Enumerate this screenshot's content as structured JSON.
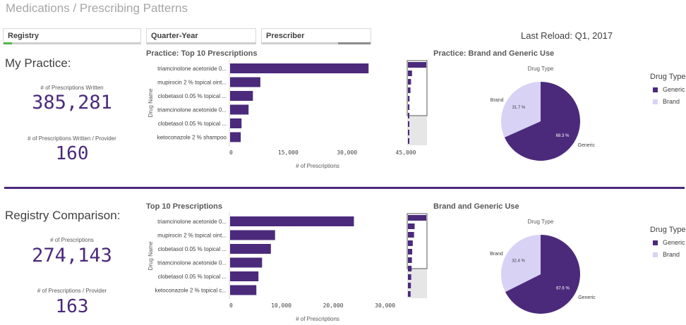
{
  "header": {
    "title": "Medications / Prescribing Patterns"
  },
  "filters": [
    {
      "label": "Registry",
      "fill": 0.06,
      "fill_color": "#52b748"
    },
    {
      "label": "Quarter-Year",
      "fill": 0,
      "fill_color": "#cfcfcf"
    },
    {
      "label": "Prescriber",
      "fill": 0.3,
      "fill_color": "#8c8c8c"
    }
  ],
  "last_reload": "Last Reload: Q1, 2017",
  "colors": {
    "purple": "#4b2a7b",
    "light_purple": "#d8d2f5"
  },
  "practice": {
    "section_title": "My Practice:",
    "kpi1_label": "# of Prescriptions Written",
    "kpi1_value": "385,281",
    "kpi2_label": "# of Prescriptions Written / Provider",
    "kpi2_value": "160",
    "bar_title": "Practice: Top 10 Prescriptions",
    "pie_title": "Practice: Brand and Generic Use"
  },
  "registry": {
    "section_title": "Registry Comparison:",
    "kpi1_label": "# of Prescriptions",
    "kpi1_value": "274,143",
    "kpi2_label": "# of Prescriptions / Provider",
    "kpi2_value": "163",
    "bar_title": "Top 10 Prescriptions",
    "pie_title": "Brand and Generic Use"
  },
  "chart_data": [
    {
      "type": "bar",
      "orientation": "horizontal",
      "title": "Practice: Top 10 Prescriptions",
      "xlabel": "# of Prescriptions",
      "ylabel": "Drug Name",
      "categories": [
        "triamcinolone acetonide 0...",
        "mupirocin 2 % topical oint...",
        "clobetasol 0.05 % topical ...",
        "triamcinolone acetonide 0...",
        "clobetasol 0.05 % topical ...",
        "ketoconazole 2 % shampoo"
      ],
      "values": [
        35500,
        7900,
        6000,
        4900,
        3100,
        2900
      ],
      "xticks": [
        "0",
        "15,000",
        "30,000",
        "45,000"
      ],
      "xlim": [
        0,
        45000
      ],
      "minimap_values": [
        35500,
        7900,
        6000,
        4900,
        3100,
        2900,
        2400,
        2100,
        1800,
        1500
      ]
    },
    {
      "type": "pie",
      "title": "Practice: Brand and Generic Use",
      "legend_title": "Drug Type",
      "dimension_label": "Drug Type",
      "slices": [
        {
          "name": "Generic",
          "value": 68.3,
          "label": "68.3 %",
          "color": "#4b2a7b"
        },
        {
          "name": "Brand",
          "value": 31.7,
          "label": "31.7 %",
          "color": "#d8d2f5"
        }
      ]
    },
    {
      "type": "bar",
      "orientation": "horizontal",
      "title": "Top 10 Prescriptions",
      "xlabel": "# of Prescriptions",
      "ylabel": "Drug Name",
      "categories": [
        "triamcinolone acetonide 0...",
        "mupirocin 2 % topical oint...",
        "clobetasol 0.05 % topical ...",
        "triamcinolone acetonide 0...",
        "clobetasol 0.05 % topical ...",
        "ketoconazole 2 % topical c..."
      ],
      "values": [
        24000,
        8800,
        8000,
        6300,
        5600,
        5200
      ],
      "xticks": [
        "0",
        "10,000",
        "20,000",
        "30,000"
      ],
      "xlim": [
        0,
        34000
      ],
      "minimap_values": [
        24000,
        8800,
        8000,
        6300,
        5600,
        5200,
        4800,
        4300,
        3900,
        3500
      ]
    },
    {
      "type": "pie",
      "title": "Brand and Generic Use",
      "legend_title": "Drug Type",
      "dimension_label": "Drug Type",
      "slices": [
        {
          "name": "Generic",
          "value": 67.6,
          "label": "67.6 %",
          "color": "#4b2a7b"
        },
        {
          "name": "Brand",
          "value": 32.4,
          "label": "32.4 %",
          "color": "#d8d2f5"
        }
      ]
    }
  ]
}
